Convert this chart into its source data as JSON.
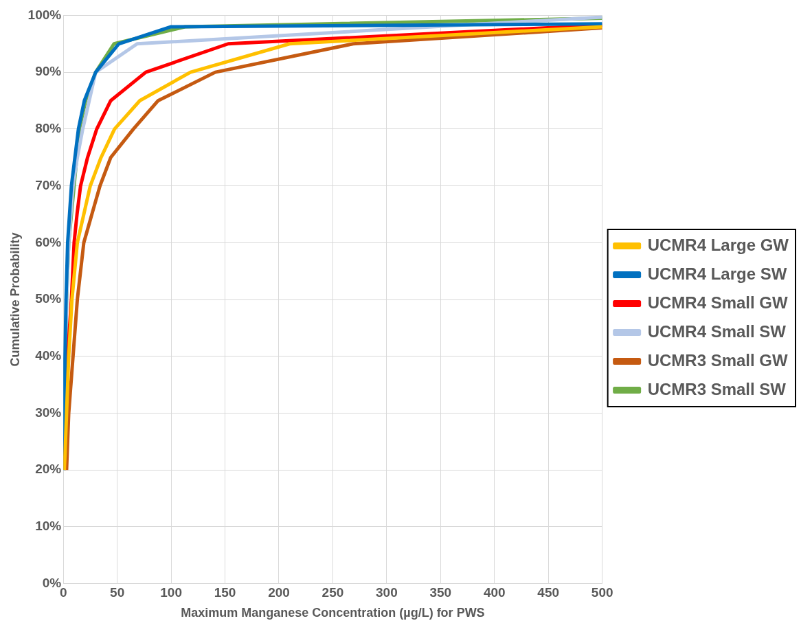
{
  "chart_data": {
    "type": "line",
    "xlabel": "Maximum Manganese Concentration (µg/L) for PWS",
    "ylabel": "Cumulative Probability",
    "xlim": [
      0,
      500
    ],
    "xticks": [
      0,
      50,
      100,
      150,
      200,
      250,
      300,
      350,
      400,
      450,
      500
    ],
    "ylim": [
      0,
      100
    ],
    "yticks": [
      {
        "value": 0,
        "label": "0%"
      },
      {
        "value": 10,
        "label": "10%"
      },
      {
        "value": 20,
        "label": "20%"
      },
      {
        "value": 30,
        "label": "30%"
      },
      {
        "value": 40,
        "label": "40%"
      },
      {
        "value": 50,
        "label": "50%"
      },
      {
        "value": 60,
        "label": "60%"
      },
      {
        "value": 70,
        "label": "70%"
      },
      {
        "value": 80,
        "label": "80%"
      },
      {
        "value": 90,
        "label": "90%"
      },
      {
        "value": 100,
        "label": "100%"
      }
    ],
    "grid": true,
    "legend": "right",
    "marker": "none",
    "line_style": "solid",
    "series": [
      {
        "name": "UCMR4 Large GW",
        "color": "#ffc000",
        "x": [
          1,
          3,
          5,
          8,
          13,
          19,
          25,
          35,
          47.5,
          71,
          118,
          210,
          500
        ],
        "values": [
          20,
          30,
          40,
          50,
          60,
          65,
          70,
          75,
          80,
          85,
          90,
          95,
          98
        ]
      },
      {
        "name": "UCMR4 Large SW",
        "color": "#0070c0",
        "x": [
          0.5,
          1,
          1.5,
          2.5,
          4,
          7.5,
          14,
          19.5,
          30,
          51.5,
          100,
          500
        ],
        "values": [
          20,
          30,
          40,
          50,
          60,
          70,
          80,
          85,
          90,
          95,
          98,
          98.5
        ]
      },
      {
        "name": "UCMR4 Small GW",
        "color": "#ff0000",
        "x": [
          1,
          2.5,
          4,
          7.5,
          10,
          12.7,
          16,
          22.5,
          31,
          44,
          76.5,
          153,
          500
        ],
        "values": [
          20,
          30,
          40,
          50,
          60,
          65,
          70,
          75,
          80,
          85,
          90,
          95,
          98.3
        ]
      },
      {
        "name": "UCMR4 Small SW",
        "color": "#b4c7e7",
        "x": [
          0.5,
          1,
          2,
          3,
          5,
          9,
          13,
          18,
          30,
          68.5,
          500
        ],
        "values": [
          20,
          30,
          40,
          50,
          60,
          70,
          75,
          80,
          90,
          95,
          99.7
        ]
      },
      {
        "name": "UCMR3 Small GW",
        "color": "#c55a11",
        "x": [
          3,
          5,
          9,
          13,
          19,
          26.5,
          34,
          44,
          65,
          88,
          141,
          269,
          500
        ],
        "values": [
          20,
          30,
          40,
          50,
          60,
          65,
          70,
          75,
          80,
          85,
          90,
          95,
          97.8
        ]
      },
      {
        "name": "UCMR3 Small SW",
        "color": "#70ad47",
        "x": [
          0.5,
          1,
          2,
          3,
          5,
          15,
          20.7,
          30,
          47,
          113,
          500
        ],
        "values": [
          20,
          30,
          40,
          50,
          60,
          80,
          85,
          90,
          95,
          98,
          99.5
        ]
      }
    ]
  }
}
